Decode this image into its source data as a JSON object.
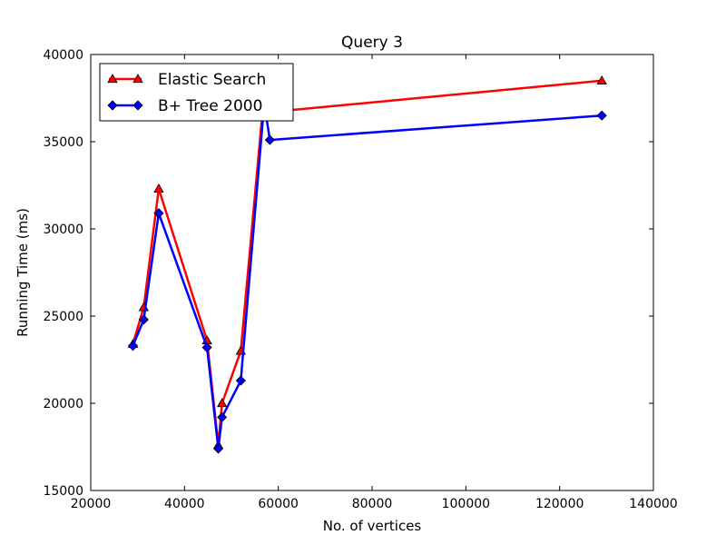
{
  "chart_data": {
    "type": "line",
    "title": "Query 3",
    "xlabel": "No. of vertices",
    "ylabel": "Running Time (ms)",
    "xlim": [
      20000,
      140000
    ],
    "ylim": [
      15000,
      40000
    ],
    "xticks": [
      20000,
      40000,
      60000,
      80000,
      100000,
      120000,
      140000
    ],
    "yticks": [
      15000,
      20000,
      25000,
      30000,
      35000,
      40000
    ],
    "xtick_labels": [
      "20000",
      "40000",
      "60000",
      "80000",
      "100000",
      "120000",
      "140000"
    ],
    "ytick_labels": [
      "15000",
      "20000",
      "25000",
      "30000",
      "35000",
      "40000"
    ],
    "grid": false,
    "legend_position": "top-left",
    "series": [
      {
        "name": "Elastic Search",
        "color": "#ff0000",
        "marker": "triangle",
        "x": [
          29000,
          31300,
          34500,
          44800,
          47200,
          48000,
          52000,
          57000,
          58200,
          129000
        ],
        "y": [
          23400,
          25500,
          32300,
          23600,
          17600,
          20000,
          23000,
          37800,
          36700,
          38500
        ]
      },
      {
        "name": "B+ Tree 2000",
        "color": "#0000ff",
        "marker": "diamond",
        "x": [
          29000,
          31300,
          34500,
          44800,
          47200,
          48000,
          52000,
          57000,
          58200,
          129000
        ],
        "y": [
          23300,
          24800,
          30900,
          23200,
          17400,
          19200,
          21300,
          37200,
          35100,
          36500
        ]
      }
    ]
  }
}
